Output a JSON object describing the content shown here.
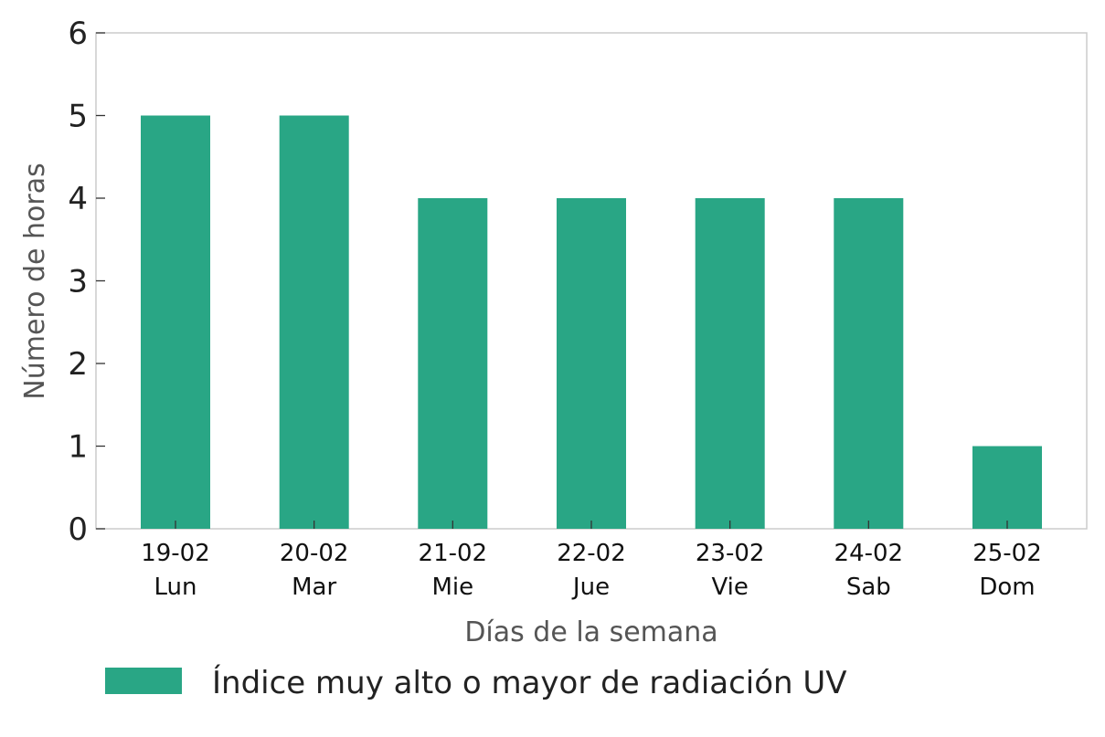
{
  "chart_data": {
    "type": "bar",
    "title": "",
    "xlabel": "Días de la semana",
    "ylabel": "Número de horas",
    "ylim": [
      0,
      6
    ],
    "yticks": [
      0,
      1,
      2,
      3,
      4,
      5,
      6
    ],
    "grid": false,
    "legend_position": "bottom-left",
    "categories": [
      [
        "19-02",
        "Lun"
      ],
      [
        "20-02",
        "Mar"
      ],
      [
        "21-02",
        "Mie"
      ],
      [
        "22-02",
        "Jue"
      ],
      [
        "23-02",
        "Vie"
      ],
      [
        "24-02",
        "Sab"
      ],
      [
        "25-02",
        "Dom"
      ]
    ],
    "series": [
      {
        "name": "Índice muy alto o mayor de radiación UV",
        "color": "#29a685",
        "values": [
          5,
          5,
          4,
          4,
          4,
          4,
          1
        ]
      }
    ]
  }
}
